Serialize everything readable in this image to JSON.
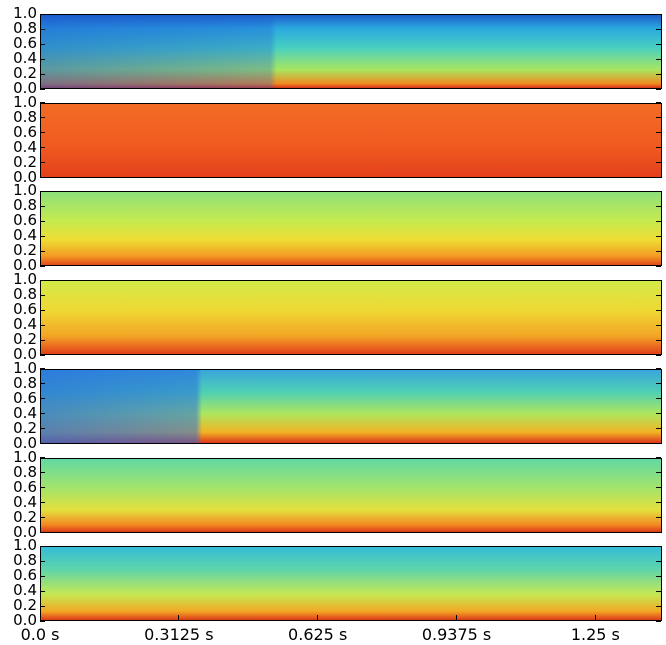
{
  "chart_data": [
    {
      "type": "spectrogram",
      "ylim": [
        0,
        1
      ],
      "yticks": [
        {
          "value": 0,
          "label": "0.0"
        },
        0.2,
        0.4,
        0.6,
        0.8,
        {
          "value": 1,
          "label": "1.0"
        }
      ]
    },
    {
      "type": "spectrogram",
      "ylim": [
        0,
        1
      ],
      "yticks": [
        {
          "value": 0,
          "label": "0.0"
        },
        0.2,
        0.4,
        0.6,
        0.8,
        {
          "value": 1,
          "label": "1.0"
        }
      ]
    },
    {
      "type": "spectrogram",
      "ylim": [
        0,
        1
      ],
      "yticks": [
        {
          "value": 0,
          "label": "0.0"
        },
        0.2,
        0.4,
        0.6,
        0.8,
        {
          "value": 1,
          "label": "1.0"
        }
      ]
    },
    {
      "type": "spectrogram",
      "ylim": [
        0,
        1
      ],
      "yticks": [
        {
          "value": 0,
          "label": "0.0"
        },
        0.2,
        0.4,
        0.6,
        0.8,
        {
          "value": 1,
          "label": "1.0"
        }
      ]
    },
    {
      "type": "spectrogram",
      "ylim": [
        0,
        1
      ],
      "yticks": [
        {
          "value": 0,
          "label": "0.0"
        },
        0.2,
        0.4,
        0.6,
        0.8,
        {
          "value": 1,
          "label": "1.0"
        }
      ]
    },
    {
      "type": "spectrogram",
      "ylim": [
        0,
        1
      ],
      "yticks": [
        {
          "value": 0,
          "label": "0.0"
        },
        0.2,
        0.4,
        0.6,
        0.8,
        {
          "value": 1,
          "label": "1.0"
        }
      ]
    },
    {
      "type": "spectrogram",
      "ylim": [
        0,
        1
      ],
      "yticks": [
        {
          "value": 0,
          "label": "0.0"
        },
        0.2,
        0.4,
        0.6,
        0.8,
        {
          "value": 1,
          "label": "1.0"
        }
      ],
      "xlim": [
        0,
        1.4
      ],
      "xticks": [
        {
          "value": 0,
          "label": "0.0 s"
        },
        {
          "value": 0.3125,
          "label": "0.3125 s"
        },
        {
          "value": 0.625,
          "label": "0.625 s"
        },
        {
          "value": 0.9375,
          "label": "0.9375 s"
        },
        {
          "value": 1.25,
          "label": "1.25 s"
        }
      ]
    }
  ]
}
